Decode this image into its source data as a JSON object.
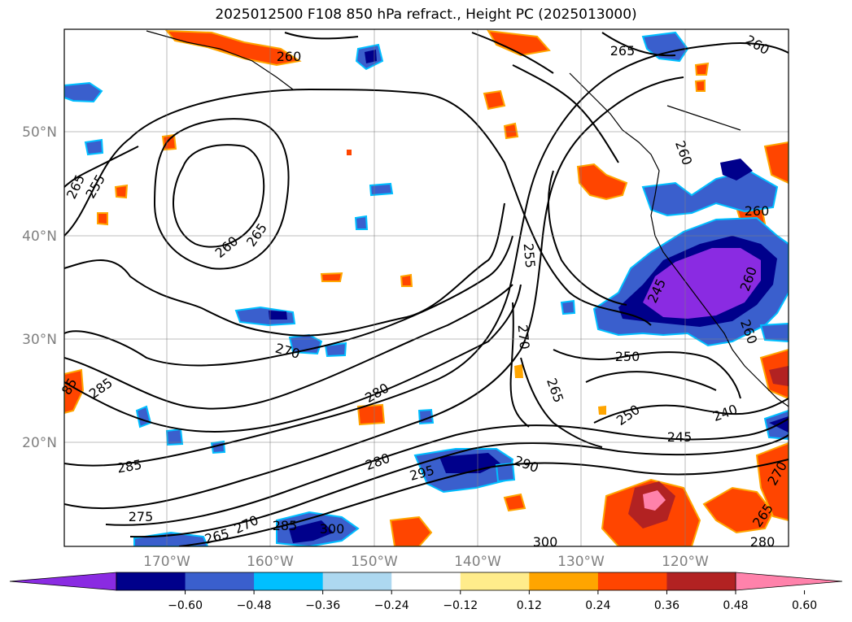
{
  "title": "2025012500 F108 850 hPa refract., Height PC (2025013000)",
  "lat_labels": [
    "50°N",
    "40°N",
    "30°N",
    "20°N"
  ],
  "lon_labels": [
    "170°W",
    "160°W",
    "150°W",
    "140°W",
    "130°W",
    "120°W"
  ],
  "contour_labels": [
    "265",
    "260",
    "260",
    "265",
    "255",
    "260",
    "265",
    "260",
    "260",
    "255",
    "245",
    "260",
    "260",
    "270",
    "270",
    "250",
    "265",
    "250",
    "240",
    "245",
    "280",
    "285",
    "85",
    "285",
    "280",
    "295",
    "290",
    "275",
    "265",
    "270",
    "285",
    "300",
    "300",
    "280",
    "265",
    "270"
  ],
  "colorbar": {
    "ticks": [
      "−0.60",
      "−0.48",
      "−0.36",
      "−0.24",
      "−0.12",
      "0.12",
      "0.24",
      "0.36",
      "0.48",
      "0.60"
    ],
    "colors": [
      "#8a2be2",
      "#00008b",
      "#3a5fcd",
      "#00bfff",
      "#add8f0",
      "#ffffff",
      "#ffec8b",
      "#ffa500",
      "#ff4500",
      "#b22222",
      "#ff82ab"
    ]
  }
}
